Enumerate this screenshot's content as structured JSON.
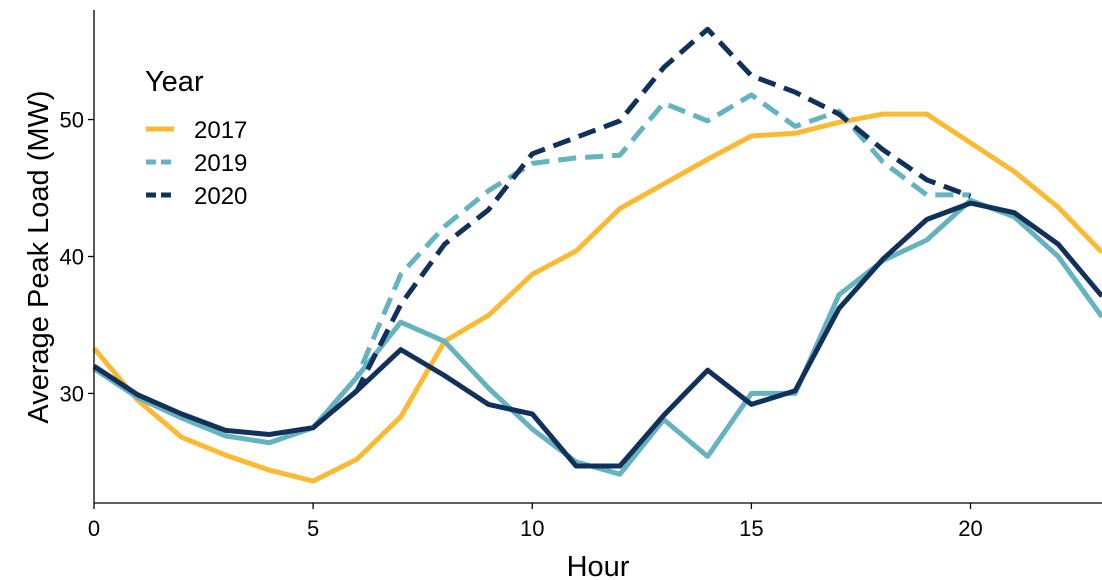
{
  "chart_data": {
    "type": "line",
    "xlabel": "Hour",
    "ylabel": "Average Peak Load (MW)",
    "xlim": [
      0,
      23
    ],
    "ylim": [
      22,
      58
    ],
    "x_ticks": [
      0,
      5,
      10,
      15,
      20
    ],
    "y_ticks": [
      30,
      40,
      50
    ],
    "grid": false,
    "legend": {
      "title": "Year",
      "placement": "top-left",
      "entries": [
        {
          "label": "2017",
          "color": "#FBBA34",
          "dash": "solid"
        },
        {
          "label": "2019",
          "color": "#65B3BE",
          "dash": "dashed"
        },
        {
          "label": "2020",
          "color": "#11315A",
          "dash": "dashed"
        }
      ]
    },
    "x": [
      0,
      1,
      2,
      3,
      4,
      5,
      6,
      7,
      8,
      9,
      10,
      11,
      12,
      13,
      14,
      15,
      16,
      17,
      18,
      19,
      20,
      21,
      22,
      23
    ],
    "series": [
      {
        "name": "2017",
        "color": "#FBBA34",
        "dash": "solid",
        "values": [
          33.3,
          29.5,
          26.8,
          25.5,
          24.4,
          23.6,
          25.2,
          28.3,
          33.8,
          35.7,
          38.7,
          40.4,
          43.5,
          45.3,
          47.1,
          48.8,
          49.0,
          49.8,
          50.4,
          50.4,
          48.3,
          46.2,
          43.6,
          40.3
        ]
      },
      {
        "name": "2019",
        "color": "#65B3BE",
        "dash": "solid",
        "values": [
          31.8,
          29.7,
          28.2,
          26.9,
          26.4,
          27.5,
          31.2,
          35.2,
          33.8,
          30.4,
          27.4,
          25.0,
          24.1,
          28.1,
          25.4,
          30.0,
          30.0,
          37.2,
          39.7,
          41.2,
          44.1,
          42.9,
          40.0,
          35.6
        ]
      },
      {
        "name": "2020",
        "color": "#11315A",
        "dash": "solid",
        "values": [
          32.0,
          29.9,
          28.5,
          27.3,
          27.0,
          27.5,
          30.2,
          33.2,
          31.3,
          29.2,
          28.5,
          24.7,
          24.7,
          28.4,
          31.7,
          29.2,
          30.2,
          36.2,
          39.8,
          42.7,
          43.9,
          43.2,
          40.9,
          37.1
        ]
      },
      {
        "name": "2019",
        "color": "#65B3BE",
        "dash": "dashed",
        "x": [
          5,
          6,
          7,
          8,
          9,
          10,
          11,
          12,
          13,
          14,
          15,
          16,
          17,
          18,
          19,
          20
        ],
        "values": [
          27.5,
          31.2,
          38.7,
          42.2,
          44.8,
          46.8,
          47.2,
          47.4,
          51.2,
          49.9,
          51.8,
          49.5,
          50.6,
          46.9,
          44.5,
          44.5
        ]
      },
      {
        "name": "2020",
        "color": "#11315A",
        "dash": "dashed",
        "x": [
          5,
          6,
          7,
          8,
          9,
          10,
          11,
          12,
          13,
          14,
          15,
          16,
          17,
          18,
          19,
          20
        ],
        "values": [
          27.5,
          30.2,
          36.5,
          40.9,
          43.4,
          47.5,
          48.7,
          49.9,
          53.8,
          56.6,
          53.2,
          52.0,
          50.4,
          47.8,
          45.6,
          44.4
        ]
      }
    ]
  }
}
